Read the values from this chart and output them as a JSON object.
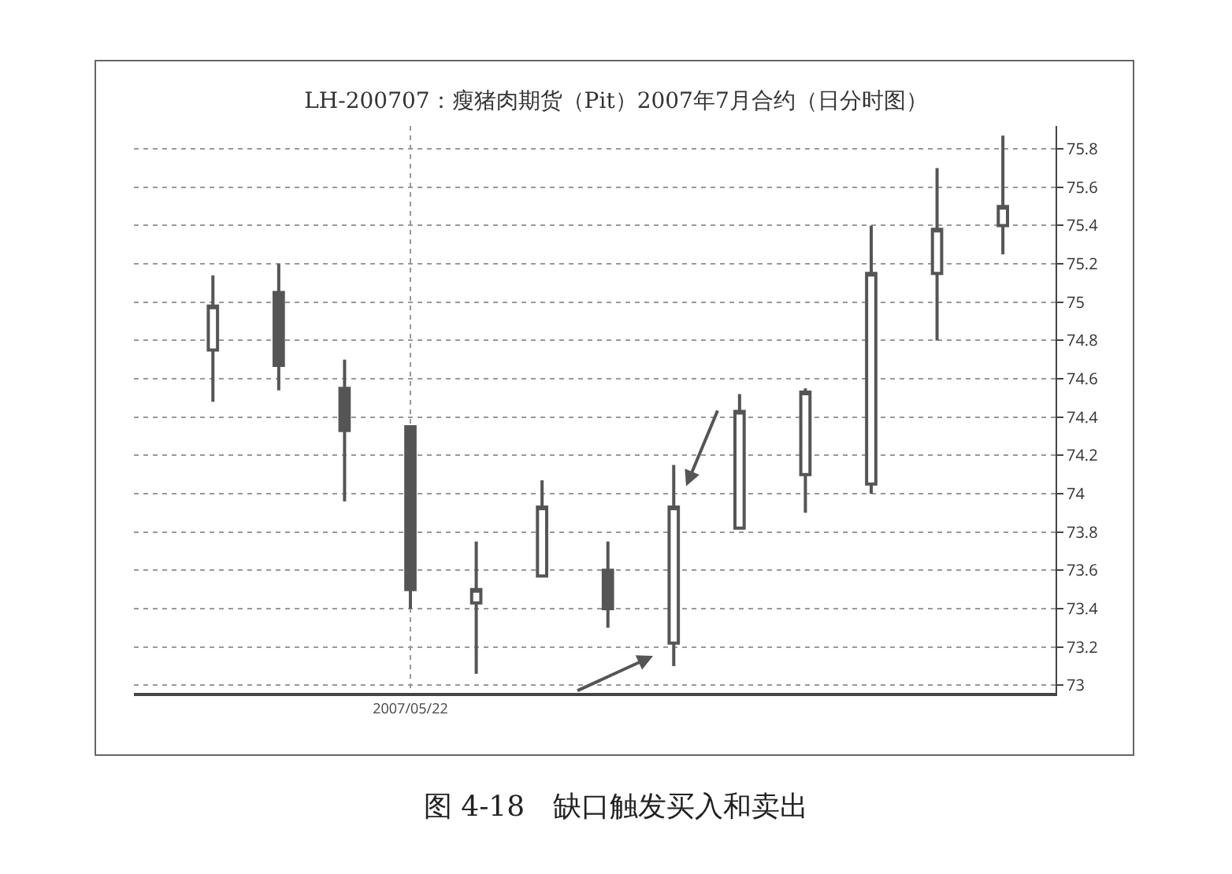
{
  "chart_data": {
    "type": "candlestick",
    "title": "LH-200707：瘦猪肉期货（Pit）2007年7月合约（日分时图）",
    "categories": [
      null,
      null,
      null,
      "2007/05/22",
      null,
      null,
      null,
      null,
      null,
      null,
      null,
      null,
      null
    ],
    "ohlc": [
      [
        74.75,
        75.14,
        74.48,
        74.98
      ],
      [
        75.05,
        75.2,
        74.54,
        74.67
      ],
      [
        74.55,
        74.7,
        73.96,
        74.33
      ],
      [
        74.35,
        74.35,
        73.4,
        73.5
      ],
      [
        73.43,
        73.75,
        73.06,
        73.5
      ],
      [
        73.57,
        74.07,
        73.57,
        73.93
      ],
      [
        73.6,
        73.75,
        73.3,
        73.4
      ],
      [
        73.22,
        74.15,
        73.1,
        73.93
      ],
      [
        73.82,
        74.52,
        73.82,
        74.43
      ],
      [
        74.1,
        74.55,
        73.9,
        74.53
      ],
      [
        74.05,
        75.4,
        74.0,
        75.15
      ],
      [
        75.15,
        75.7,
        74.8,
        75.38
      ],
      [
        75.4,
        75.87,
        75.25,
        75.5
      ]
    ],
    "color": "#555555",
    "ylim": [
      72.96,
      75.92
    ],
    "yticks": [
      73,
      73.2,
      73.4,
      73.6,
      73.8,
      74,
      74.2,
      74.4,
      74.6,
      74.8,
      75,
      75.2,
      75.4,
      75.6,
      75.8
    ],
    "grid": true,
    "annotations": [
      "图 4-18　缺口触发买入和卖出"
    ]
  }
}
